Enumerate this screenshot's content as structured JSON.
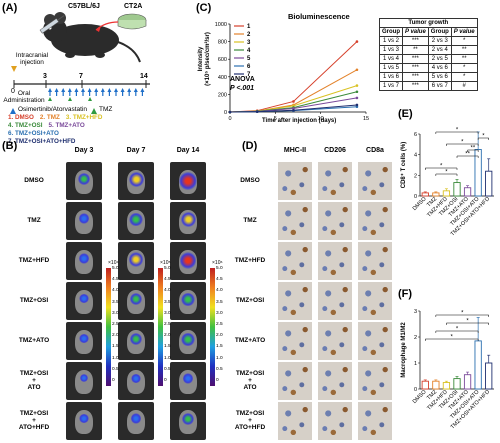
{
  "panelA": {
    "letter": "(A)",
    "strain": "C57BL/6J",
    "cell_line": "CT2A",
    "injection": "Intracranial injection",
    "days": [
      "0",
      "3",
      "7",
      "14"
    ],
    "oral_admin": "Oral Administration",
    "drug_legend": "Osimertinib/Atorvastatin",
    "tmz_legend": "TMZ",
    "groups": [
      {
        "label": "1. DMSO",
        "color": "#d6402b"
      },
      {
        "label": "2. TMZ",
        "color": "#e3822a"
      },
      {
        "label": "3. TMZ+HFD",
        "color": "#d9c223"
      },
      {
        "label": "4. TMZ+OSI",
        "color": "#3a8a3a"
      },
      {
        "label": "5. TMZ+ATO",
        "color": "#7a4a9a"
      },
      {
        "label": "6. TMZ+OSI+ATO",
        "color": "#2a6fb0"
      },
      {
        "label": "7. TMZ+OSI+ATO+HFD",
        "color": "#1f2f6f"
      }
    ]
  },
  "panelC": {
    "letter": "(C)",
    "title": "Bioluminescence",
    "ylabel": "Intensity",
    "yunit": "(×10⁵ p/sec/cm²/sr)",
    "xlabel": "Time after injection (days)",
    "anova": "ANOVA",
    "pval": "P <.001",
    "table_title": "Tumor growth",
    "table_headers": [
      "Group",
      "P value",
      "Group",
      "P value"
    ],
    "table_rows": [
      [
        "1 vs 2",
        "***",
        "2 vs 3",
        "*"
      ],
      [
        "1 vs 3",
        "**",
        "2 vs 4",
        "**"
      ],
      [
        "1 vs 4",
        "***",
        "2 vs 5",
        "**"
      ],
      [
        "1 vs 5",
        "***",
        "4 vs 6",
        "*"
      ],
      [
        "1 vs 6",
        "***",
        "5 vs 6",
        "*"
      ],
      [
        "1 vs 7",
        "***",
        "6 vs 7",
        "#"
      ]
    ]
  },
  "chart_data": [
    {
      "type": "line",
      "title": "Bioluminescence",
      "xlabel": "Time after injection (days)",
      "ylabel": "Intensity (×10⁵ p/sec/cm²/sr)",
      "x": [
        0,
        3,
        7,
        14
      ],
      "xlim": [
        0,
        15
      ],
      "ylim": [
        0,
        1000
      ],
      "xticks": [
        0,
        5,
        10,
        15
      ],
      "yticks": [
        0,
        200,
        400,
        600,
        800,
        1000
      ],
      "legend_position": "top-left",
      "series": [
        {
          "name": "1",
          "color": "#d6402b",
          "values": [
            0,
            15,
            120,
            800
          ]
        },
        {
          "name": "2",
          "color": "#e3822a",
          "values": [
            0,
            10,
            80,
            480
          ]
        },
        {
          "name": "3",
          "color": "#d9c223",
          "values": [
            0,
            10,
            70,
            300
          ]
        },
        {
          "name": "4",
          "color": "#3a8a3a",
          "values": [
            0,
            8,
            50,
            230
          ]
        },
        {
          "name": "5",
          "color": "#7a4a9a",
          "values": [
            0,
            5,
            40,
            160
          ]
        },
        {
          "name": "6",
          "color": "#2a6fb0",
          "values": [
            0,
            3,
            15,
            60
          ]
        },
        {
          "name": "7",
          "color": "#1f2f6f",
          "values": [
            0,
            3,
            20,
            80
          ]
        }
      ]
    },
    {
      "type": "bar",
      "panel": "(E)",
      "ylabel": "CD8⁺ T cells (%)",
      "ylim": [
        0,
        6
      ],
      "yticks": [
        0,
        2,
        4,
        6
      ],
      "categories": [
        "DMSO",
        "TMZ",
        "TMZ+HFD",
        "TMZ+OSI",
        "TMZ+ATO",
        "TMZ+OSI+ATO",
        "TMZ+OSI+ATO+HFD"
      ],
      "values": [
        0.3,
        0.3,
        0.5,
        1.3,
        0.8,
        4.5,
        2.4
      ],
      "errors": [
        0.1,
        0.1,
        0.2,
        0.3,
        0.2,
        1.7,
        1.2
      ],
      "colors": [
        "#d6402b",
        "#e3822a",
        "#d9c223",
        "#3a8a3a",
        "#7a4a9a",
        "#2a6fb0",
        "#1f2f6f"
      ]
    },
    {
      "type": "bar",
      "panel": "(F)",
      "ylabel": "Macrophage M1/M2",
      "ylim": [
        0,
        3
      ],
      "yticks": [
        0,
        1,
        2,
        3
      ],
      "categories": [
        "DMSO",
        "TMZ",
        "TMZ+HFD",
        "TMZ+OSI",
        "TMZ+ATO",
        "TMZ+OSI+ATO",
        "TMZ+OSI+ATO+HFD"
      ],
      "values": [
        0.3,
        0.3,
        0.25,
        0.4,
        0.55,
        1.85,
        1.0
      ],
      "errors": [
        0.05,
        0.05,
        0.05,
        0.08,
        0.1,
        0.9,
        0.3
      ],
      "colors": [
        "#d6402b",
        "#e3822a",
        "#d9c223",
        "#3a8a3a",
        "#7a4a9a",
        "#2a6fb0",
        "#1f2f6f"
      ]
    }
  ],
  "panelB": {
    "letter": "(B)",
    "cols": [
      "Day 3",
      "Day 7",
      "Day 14"
    ],
    "rows": [
      "DMSO",
      "TMZ",
      "TMZ+HFD",
      "TMZ+OSI",
      "TMZ+ATO",
      "TMZ+OSI\n+\nATO",
      "TMZ+OSI\n+\nATO+HFD"
    ],
    "scale_exp": [
      "×10⁴",
      "×10⁵",
      "×10⁶"
    ],
    "scale_ticks": [
      "5.0",
      "4.5",
      "4.0",
      "3.5",
      "3.0",
      "2.5",
      "2.0",
      "1.5",
      "1.0",
      "0.5",
      "0"
    ],
    "signal": [
      [
        0.5,
        0.75,
        1.0
      ],
      [
        0.4,
        0.6,
        0.75
      ],
      [
        0.4,
        0.7,
        0.9
      ],
      [
        0.3,
        0.5,
        0.6
      ],
      [
        0.3,
        0.55,
        0.6
      ],
      [
        0.2,
        0.3,
        0.35
      ],
      [
        0.3,
        0.4,
        0.5
      ]
    ]
  },
  "panelD": {
    "letter": "(D)",
    "cols": [
      "MHC-II",
      "CD206",
      "CD8a"
    ],
    "rows": [
      "DMSO",
      "TMZ",
      "TMZ+HFD",
      "TMZ+OSI",
      "TMZ+ATO",
      "TMZ+OSI\n+\nATO",
      "TMZ+OSI\n+\nATO+HFD"
    ]
  },
  "panelE": {
    "letter": "(E)",
    "ylabel": "CD8⁺ T cells (%)",
    "sig": [
      "*",
      "*",
      "**",
      "**",
      "*",
      "*",
      "*"
    ]
  },
  "panelF": {
    "letter": "(F)",
    "ylabel": "Macrophage M1/M2",
    "sig": [
      "*",
      "*",
      "*",
      "*"
    ]
  }
}
